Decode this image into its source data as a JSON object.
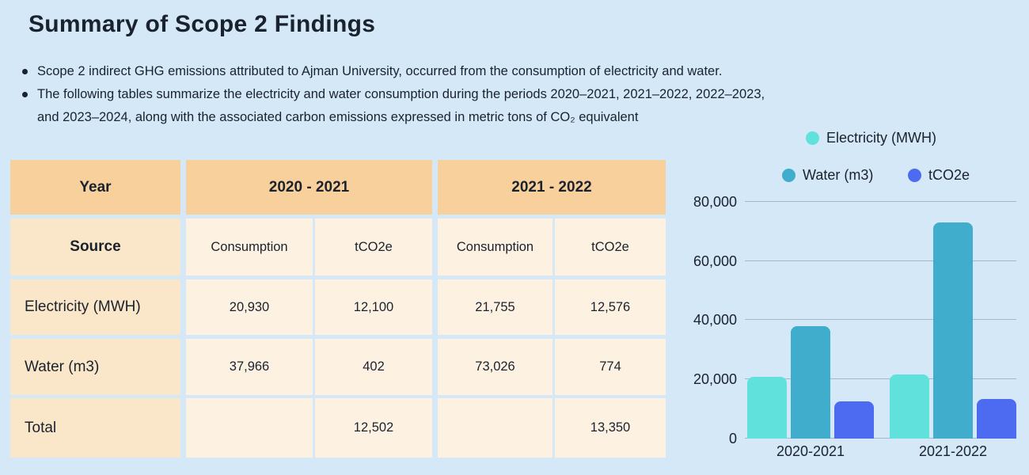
{
  "header": {
    "title": "Summary of Scope 2 Findings"
  },
  "bullets": [
    {
      "lines": [
        "Scope 2 indirect GHG emissions attributed to Ajman University, occurred from the consumption of electricity and water."
      ]
    },
    {
      "lines": [
        "The following tables summarize the electricity and water consumption during the periods 2020–2021, 2021–2022, 2022–2023,",
        "and 2023–2024, along with the associated carbon emissions expressed in metric tons of CO₂ equivalent"
      ]
    }
  ],
  "table": {
    "corner_label": "Year",
    "year_groups": [
      "2020 - 2021",
      "2021 - 2022"
    ],
    "source_label": "Source",
    "sub_headers": [
      "Consumption",
      "tCO2e",
      "Consumption",
      "tCO2e"
    ],
    "rows": [
      {
        "label": "Electricity (MWH)",
        "values": [
          "20,930",
          "12,100",
          "21,755",
          "12,576"
        ]
      },
      {
        "label": "Water (m3)",
        "values": [
          "37,966",
          "402",
          "73,026",
          "774"
        ]
      },
      {
        "label": "Total",
        "values": [
          "",
          "12,502",
          "",
          "13,350"
        ]
      }
    ]
  },
  "chart_data": {
    "type": "bar",
    "categories": [
      "2020-2021",
      "2021-2022"
    ],
    "series": [
      {
        "name": "Electricity (MWH)",
        "color": "#60e1db",
        "values": [
          20930,
          21755
        ]
      },
      {
        "name": "Water (m3)",
        "color": "#3fadcb",
        "values": [
          37966,
          73026
        ]
      },
      {
        "name": "tCO2e",
        "color": "#4c6bf0",
        "values": [
          12502,
          13350
        ]
      }
    ],
    "title": "",
    "xlabel": "",
    "ylabel": "",
    "ylim": [
      0,
      80000
    ],
    "yticks": [
      "0",
      "20,000",
      "40,000",
      "60,000",
      "80,000"
    ],
    "grid": true,
    "legend_position": "top-right"
  },
  "colors": {
    "background": "#d4e8f7",
    "table_header": "#f8d09c",
    "table_label": "#fae6c8",
    "table_data": "#fdf2e2",
    "text": "#1a222e",
    "gridline": "#a4b8c6"
  }
}
